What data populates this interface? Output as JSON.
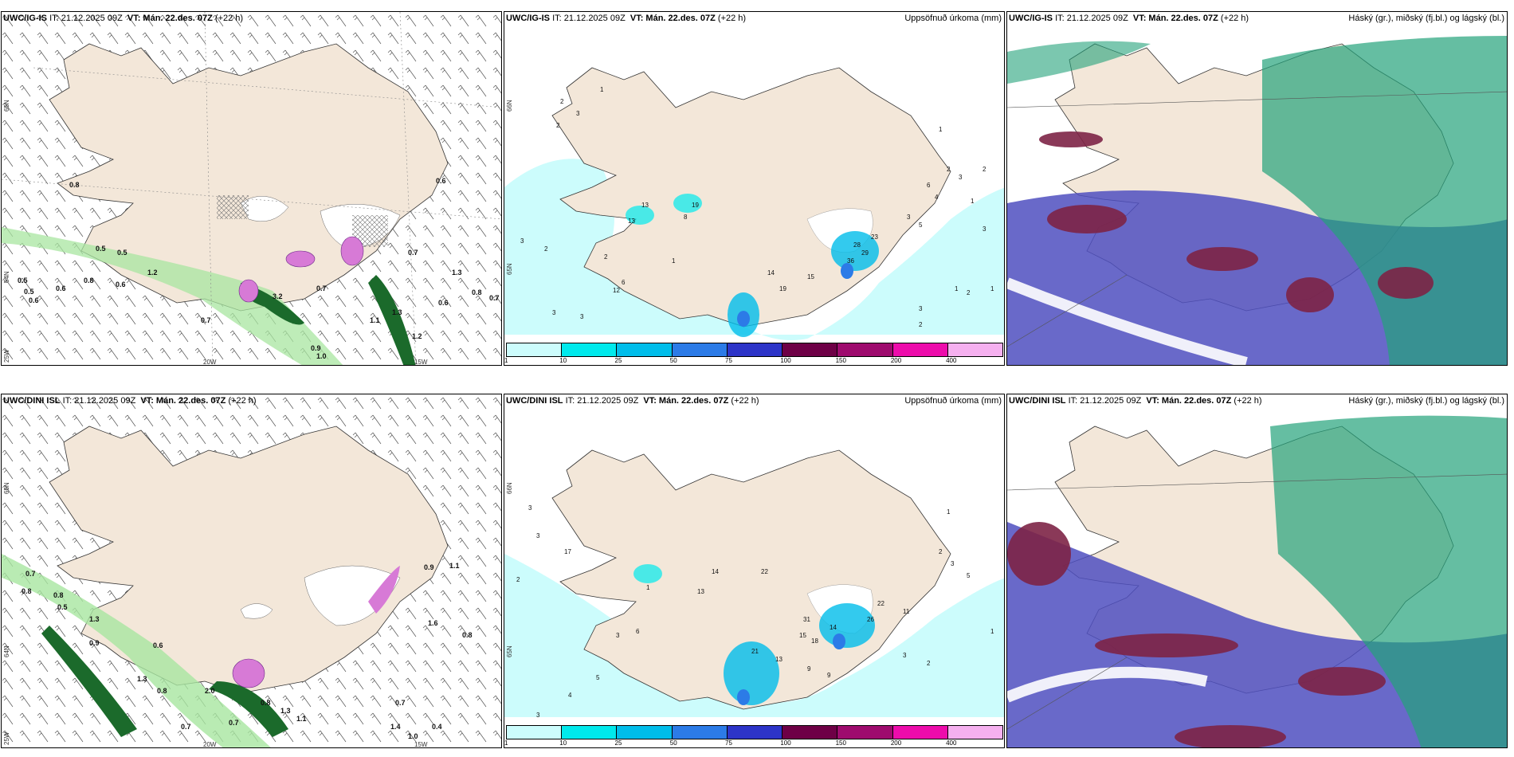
{
  "title_row": [
    {
      "model": "UWC/IG-IS",
      "it": "IT: 21.12.2025 09Z",
      "vt_label": "VT:",
      "vt": "Mán. 22.des. 07Z",
      "lead": "(+22 h)"
    },
    {
      "model": "UWC/DINI ISL",
      "it": "IT: 21.12.2025 09Z",
      "vt_label": "VT:",
      "vt": "Mán. 22.des. 07Z",
      "lead": "(+22 h)"
    }
  ],
  "precip_title": "Uppsöfnuð úrkoma (mm)",
  "cloud_title": "Háský (gr.), miðský (fj.bl.) og lágský (bl.)",
  "axis_labels": {
    "lat66": "66N",
    "lat64": "64N",
    "lon25": "25W",
    "lon20": "20W",
    "lon15": "15W",
    "lat65": "65N"
  },
  "colorbar": {
    "ticks": [
      "1",
      "10",
      "25",
      "50",
      "75",
      "100",
      "150",
      "200",
      "400"
    ],
    "colors": [
      "#ccfcfc",
      "#00e9ec",
      "#00bdea",
      "#2c7be7",
      "#2d34c8",
      "#6e0046",
      "#9e0b6e",
      "#ed0cab",
      "#f5b0ef"
    ]
  },
  "colors": {
    "land": "#f3e7d9",
    "snow": "#ffffff",
    "light_green": "#a8e6a0",
    "dark_green": "#1b6a2b",
    "magenta": "#d77ad6",
    "cloud_high": "#4f4fbf",
    "cloud_mid": "#7d2346",
    "cloud_low": "#23a27a"
  },
  "wind_numbers_top": [
    "0.8",
    "0.5",
    "0.5",
    "0.5",
    "0.5",
    "0.6",
    "0.6",
    "0.8",
    "0.6",
    "1.2",
    "0.7",
    "3.2",
    "0.7",
    "1.1",
    "1.3",
    "1.2",
    "0.9",
    "1.0",
    "0.6",
    "0.7",
    "1.3",
    "0.8",
    "0.7",
    "0.6"
  ],
  "wind_numbers_bottom": [
    "0.7",
    "0.8",
    "0.8",
    "0.5",
    "1.3",
    "0.9",
    "0.6",
    "1.3",
    "0.8",
    "2.0",
    "0.7",
    "0.7",
    "0.8",
    "1.3",
    "1.1",
    "1.4",
    "0.7",
    "1.0",
    "0.4",
    "0.9",
    "1.1",
    "0.8",
    "1.6"
  ],
  "precip_numbers_top": [
    "2",
    "3",
    "2",
    "1",
    "13",
    "19",
    "13",
    "8",
    "28",
    "29",
    "36",
    "23",
    "14",
    "19",
    "15",
    "2",
    "6",
    "12",
    "1",
    "2",
    "3",
    "3",
    "3",
    "1",
    "2",
    "3",
    "6",
    "4",
    "3",
    "5",
    "2",
    "1",
    "1",
    "2",
    "3",
    "2",
    "1",
    "3"
  ],
  "precip_numbers_bottom": [
    "17",
    "14",
    "13",
    "22",
    "31",
    "14",
    "18",
    "15",
    "21",
    "13",
    "9",
    "9",
    "22",
    "26",
    "11",
    "3",
    "2",
    "3",
    "5",
    "4",
    "1",
    "6",
    "3",
    "3",
    "1",
    "2",
    "3",
    "5",
    "3",
    "2",
    "1"
  ]
}
